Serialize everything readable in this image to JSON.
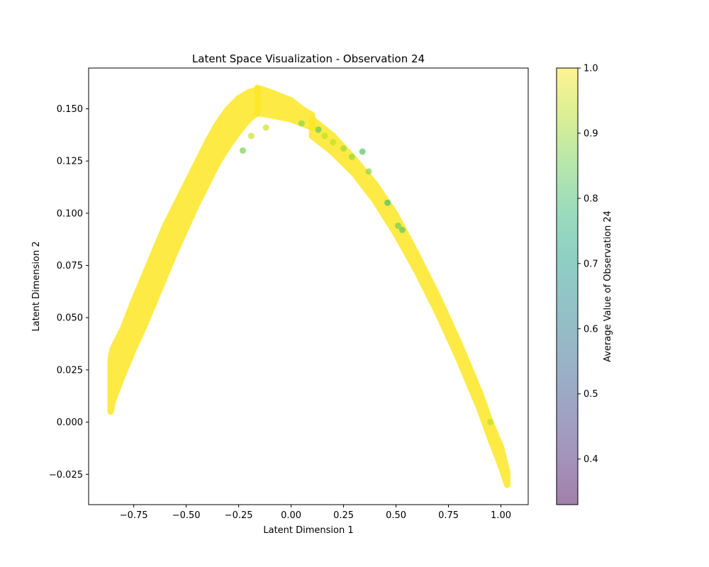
{
  "chart_data": {
    "type": "scatter",
    "title": "Latent Space Visualization - Observation 24",
    "xlabel": "Latent Dimension 1",
    "ylabel": "Latent Dimension 2",
    "xlim": [
      -0.965,
      1.13
    ],
    "ylim": [
      -0.0395,
      0.1695
    ],
    "xticks": [
      -0.75,
      -0.5,
      -0.25,
      0.0,
      0.25,
      0.5,
      0.75,
      1.0
    ],
    "xtick_labels": [
      "−0.75",
      "−0.50",
      "−0.25",
      "0.00",
      "0.25",
      "0.50",
      "0.75",
      "1.00"
    ],
    "yticks": [
      -0.025,
      0.0,
      0.025,
      0.05,
      0.075,
      0.1,
      0.125,
      0.15
    ],
    "ytick_labels": [
      "−0.025",
      "0.000",
      "0.025",
      "0.050",
      "0.075",
      "0.100",
      "0.125",
      "0.150"
    ],
    "grid": false,
    "marker_alpha": 0.5,
    "colormap": "viridis",
    "colorbar": {
      "label": "Average Value of Observation 24",
      "range": [
        0.33,
        1.0
      ],
      "ticks": [
        0.4,
        0.5,
        0.6,
        0.7,
        0.8,
        0.9,
        1.0
      ],
      "tick_labels": [
        "0.4",
        "0.5",
        "0.6",
        "0.7",
        "0.8",
        "0.9",
        "1.0"
      ]
    },
    "series": [
      {
        "kind": "left-branch-band",
        "color_value": 1.0,
        "x": [
          -0.86,
          -0.85,
          -0.8,
          -0.75,
          -0.7,
          -0.65,
          -0.6,
          -0.55,
          -0.5,
          -0.45,
          -0.4,
          -0.35,
          -0.3,
          -0.25,
          -0.2,
          -0.16
        ],
        "y_low": [
          0.005,
          0.01,
          0.023,
          0.035,
          0.046,
          0.058,
          0.07,
          0.082,
          0.093,
          0.104,
          0.114,
          0.124,
          0.132,
          0.139,
          0.145,
          0.148
        ],
        "y_high": [
          0.03,
          0.035,
          0.045,
          0.058,
          0.07,
          0.082,
          0.094,
          0.104,
          0.114,
          0.124,
          0.134,
          0.143,
          0.15,
          0.155,
          0.158,
          0.159
        ]
      },
      {
        "kind": "peak-band",
        "color_value": 1.0,
        "x": [
          -0.16,
          -0.1,
          -0.05,
          0.0,
          0.05,
          0.1
        ],
        "y_low": [
          0.148,
          0.147,
          0.146,
          0.145,
          0.143,
          0.141
        ],
        "y_high": [
          0.16,
          0.158,
          0.156,
          0.154,
          0.15,
          0.147
        ]
      },
      {
        "kind": "right-branch-band",
        "color_value": 1.0,
        "x": [
          0.1,
          0.2,
          0.3,
          0.4,
          0.5,
          0.6,
          0.7,
          0.8,
          0.9,
          0.95,
          1.0,
          1.03
        ],
        "y_low": [
          0.137,
          0.129,
          0.119,
          0.106,
          0.09,
          0.072,
          0.052,
          0.03,
          0.006,
          -0.008,
          -0.021,
          -0.03
        ],
        "y_high": [
          0.145,
          0.137,
          0.126,
          0.114,
          0.099,
          0.08,
          0.06,
          0.038,
          0.014,
          0.0,
          -0.012,
          -0.024
        ]
      },
      {
        "kind": "highlighted-points",
        "x": [
          0.05,
          0.13,
          0.16,
          0.2,
          0.25,
          0.29,
          0.34,
          0.37,
          0.46,
          0.51,
          0.53,
          -0.23,
          -0.19,
          -0.12,
          0.95
        ],
        "y": [
          0.143,
          0.14,
          0.137,
          0.134,
          0.131,
          0.127,
          0.1295,
          0.12,
          0.105,
          0.094,
          0.092,
          0.13,
          0.137,
          0.141,
          0.0
        ],
        "c": [
          0.88,
          0.83,
          0.93,
          0.93,
          0.9,
          0.89,
          0.82,
          0.88,
          0.8,
          0.85,
          0.83,
          0.86,
          0.95,
          0.95,
          0.93
        ]
      }
    ]
  }
}
